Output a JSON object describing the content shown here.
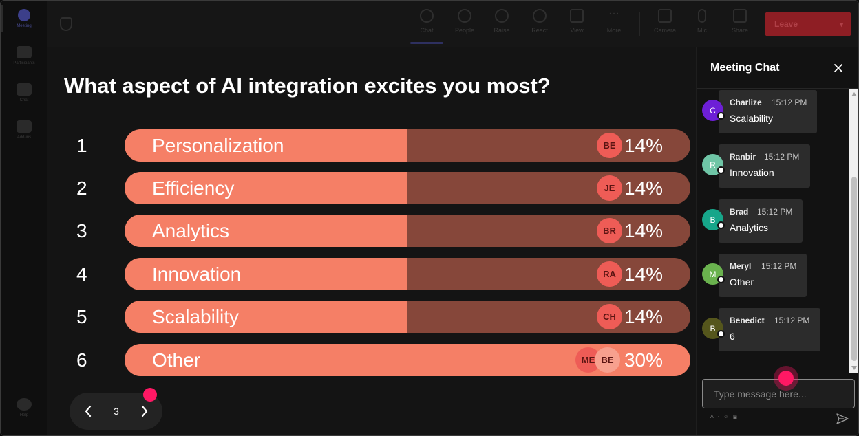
{
  "rail": {
    "items": [
      {
        "label": "Meeting"
      },
      {
        "label": "Participants"
      },
      {
        "label": "Chat"
      },
      {
        "label": "Add-ins"
      }
    ],
    "bottom": {
      "label": "Help"
    }
  },
  "toolbar": {
    "buttons": [
      {
        "label": "Chat",
        "icon": "chat-icon"
      },
      {
        "label": "People",
        "icon": "people-icon"
      },
      {
        "label": "Raise",
        "icon": "raise-hand-icon"
      },
      {
        "label": "React",
        "icon": "react-icon"
      },
      {
        "label": "View",
        "icon": "view-icon"
      },
      {
        "label": "More",
        "icon": "more-icon"
      },
      {
        "label": "Camera",
        "icon": "camera-icon"
      },
      {
        "label": "Mic",
        "icon": "mic-icon"
      },
      {
        "label": "Share",
        "icon": "share-icon"
      }
    ],
    "leave_label": "Leave",
    "leave_color": "#8e1e24"
  },
  "poll": {
    "question": "What aspect of AI integration excites you most?",
    "options": [
      {
        "num": "1",
        "label": "Personalization",
        "percent": "14%",
        "value": 14,
        "avatars": [
          "BE"
        ]
      },
      {
        "num": "2",
        "label": "Efficiency",
        "percent": "14%",
        "value": 14,
        "avatars": [
          "JE"
        ]
      },
      {
        "num": "3",
        "label": "Analytics",
        "percent": "14%",
        "value": 14,
        "avatars": [
          "BR"
        ]
      },
      {
        "num": "4",
        "label": "Innovation",
        "percent": "14%",
        "value": 14,
        "avatars": [
          "RA"
        ]
      },
      {
        "num": "5",
        "label": "Scalability",
        "percent": "14%",
        "value": 14,
        "avatars": [
          "CH"
        ]
      },
      {
        "num": "6",
        "label": "Other",
        "percent": "30%",
        "value": 30,
        "avatars": [
          "ME",
          "BE"
        ]
      }
    ],
    "bar_fill_color": "#f57f66",
    "bar_track_color": "#86473a",
    "pager": {
      "page": "3"
    }
  },
  "chat": {
    "title": "Meeting Chat",
    "messages": [
      {
        "initial": "C",
        "avatar_color": "#6d1fd6",
        "name": "Charlize",
        "time": "15:12 PM",
        "text": "Scalability"
      },
      {
        "initial": "R",
        "avatar_color": "#6fc5a6",
        "name": "Ranbir",
        "time": "15:12 PM",
        "text": "Innovation"
      },
      {
        "initial": "B",
        "avatar_color": "#17a68a",
        "name": "Brad",
        "time": "15:12 PM",
        "text": "Analytics"
      },
      {
        "initial": "M",
        "avatar_color": "#6ab24e",
        "name": "Meryl",
        "time": "15:12 PM",
        "text": "Other"
      },
      {
        "initial": "B",
        "avatar_color": "#55561c",
        "name": "Benedict",
        "time": "15:12 PM",
        "text": "6"
      }
    ],
    "input_placeholder": "Type message here..."
  }
}
